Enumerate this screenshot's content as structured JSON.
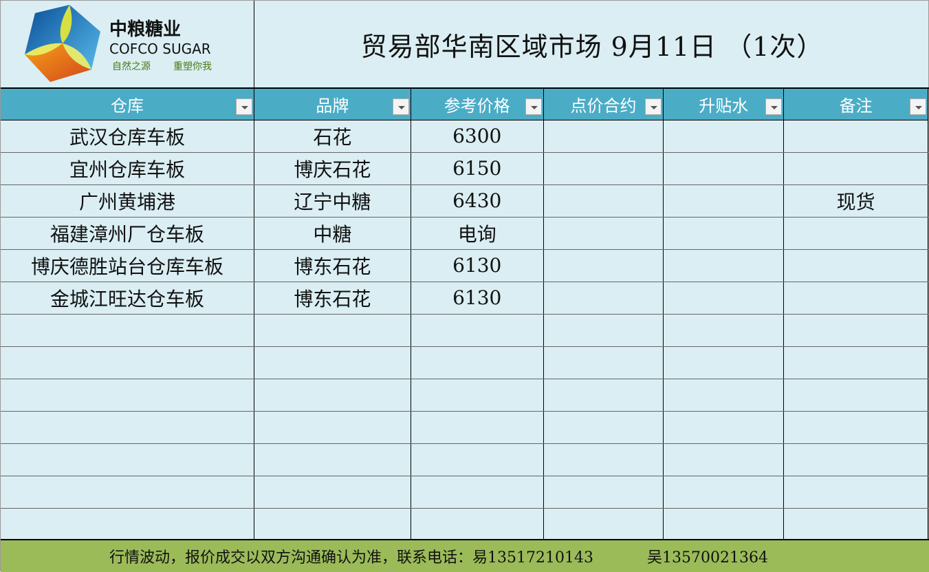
{
  "logo": {
    "cn": "中粮糖业",
    "en": "COFCO SUGAR",
    "slogan1": "自然之源",
    "slogan2": "重塑你我"
  },
  "title": "贸易部华南区域市场  9月11日  （1次）",
  "columns": [
    "仓库",
    "品牌",
    "参考价格",
    "点价合约",
    "升贴水",
    "备注"
  ],
  "rows": [
    [
      "武汉仓库车板",
      "石花",
      "6300",
      "",
      "",
      ""
    ],
    [
      "宜州仓库车板",
      "博庆石花",
      "6150",
      "",
      "",
      ""
    ],
    [
      "广州黄埔港",
      "辽宁中糖",
      "6430",
      "",
      "",
      "现货"
    ],
    [
      "福建漳州厂仓车板",
      "中糖",
      "电询",
      "",
      "",
      ""
    ],
    [
      "博庆德胜站台仓库车板",
      "博东石花",
      "6130",
      "",
      "",
      ""
    ],
    [
      "金城江旺达仓车板",
      "博东石花",
      "6130",
      "",
      "",
      ""
    ],
    [
      "",
      "",
      "",
      "",
      "",
      ""
    ],
    [
      "",
      "",
      "",
      "",
      "",
      ""
    ],
    [
      "",
      "",
      "",
      "",
      "",
      ""
    ],
    [
      "",
      "",
      "",
      "",
      "",
      ""
    ],
    [
      "",
      "",
      "",
      "",
      "",
      ""
    ],
    [
      "",
      "",
      "",
      "",
      "",
      ""
    ],
    [
      "",
      "",
      "",
      "",
      "",
      ""
    ]
  ],
  "footer": {
    "notice": "行情波动，报价成交以双方沟通确认为准，联系电话：易13517210143",
    "contact2": "吴13570021364"
  },
  "colors": {
    "background": "#DAEEF3",
    "header": "#4BACC6",
    "footer": "#9BBB59"
  }
}
